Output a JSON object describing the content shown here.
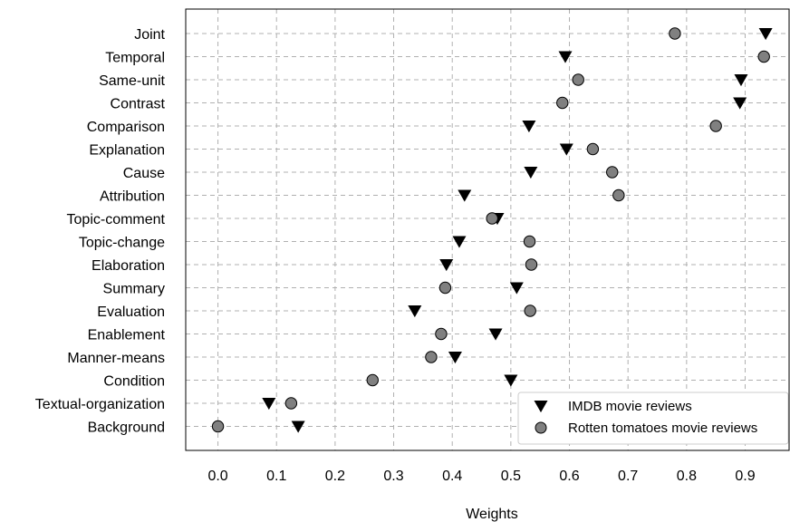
{
  "chart_data": {
    "type": "scatter",
    "categories": [
      "Joint",
      "Temporal",
      "Same-unit",
      "Contrast",
      "Comparison",
      "Explanation",
      "Cause",
      "Attribution",
      "Topic-comment",
      "Topic-change",
      "Elaboration",
      "Summary",
      "Evaluation",
      "Enablement",
      "Manner-means",
      "Condition",
      "Textual-organization",
      "Background"
    ],
    "series": [
      {
        "name": "IMDB movie reviews",
        "marker": "triangle-down",
        "color": "#000000",
        "values": [
          0.935,
          0.593,
          0.893,
          0.891,
          0.531,
          0.595,
          0.534,
          0.421,
          0.477,
          0.412,
          0.39,
          0.51,
          0.336,
          0.474,
          0.405,
          0.5,
          0.087,
          0.137
        ]
      },
      {
        "name": "Rotten tomatoes movie reviews",
        "marker": "circle",
        "color": "#808080",
        "values": [
          0.78,
          0.932,
          0.615,
          0.588,
          0.85,
          0.64,
          0.673,
          0.684,
          0.468,
          0.532,
          0.535,
          0.388,
          0.533,
          0.381,
          0.364,
          0.264,
          0.125,
          0.0
        ]
      }
    ],
    "x_ticks": [
      "0.0",
      "0.1",
      "0.2",
      "0.3",
      "0.4",
      "0.5",
      "0.6",
      "0.7",
      "0.8",
      "0.9"
    ],
    "xlabel": "Weights",
    "ylabel": "",
    "title": "",
    "xlim": [
      -0.055,
      0.975
    ],
    "grid": true,
    "legend_position": "bottom-right"
  }
}
